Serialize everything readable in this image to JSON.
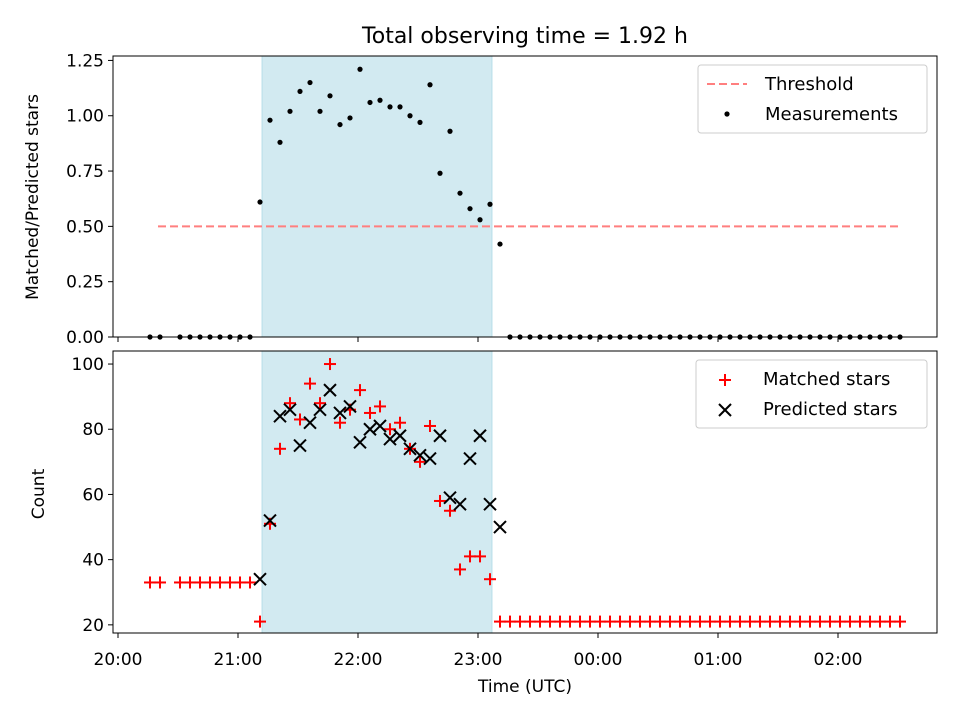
{
  "chart_data": [
    {
      "type": "scatter",
      "title": "Total observing time = 1.92 h",
      "ylabel": "Matched/Predicted stars",
      "ylim": [
        0,
        1.27
      ],
      "yticks": [
        "0.00",
        "0.25",
        "0.50",
        "0.75",
        "1.00",
        "1.25"
      ],
      "legend_position": "top-right",
      "shaded_interval": {
        "start": "21:12",
        "end": "23:07",
        "color": "#add8e6"
      },
      "threshold": {
        "name": "Threshold",
        "value": 0.5,
        "from": "20:20",
        "to": "02:32",
        "color": "#ff7f7f",
        "style": "dashed"
      },
      "series": [
        {
          "name": "Measurements",
          "color": "#000000",
          "marker": "dot",
          "x": [
            "20:16",
            "20:21",
            "20:31",
            "20:36",
            "20:41",
            "20:46",
            "20:51",
            "20:56",
            "21:01",
            "21:06",
            "21:11",
            "21:16",
            "21:21",
            "21:26",
            "21:31",
            "21:36",
            "21:41",
            "21:46",
            "21:51",
            "21:56",
            "22:01",
            "22:06",
            "22:11",
            "22:16",
            "22:21",
            "22:26",
            "22:31",
            "22:36",
            "22:41",
            "22:46",
            "22:51",
            "22:56",
            "23:01",
            "23:06",
            "23:11",
            "23:16",
            "23:21",
            "23:26",
            "23:31",
            "23:36",
            "23:41",
            "23:46",
            "23:51",
            "23:56",
            "00:01",
            "00:06",
            "00:11",
            "00:16",
            "00:21",
            "00:26",
            "00:31",
            "00:36",
            "00:41",
            "00:46",
            "00:51",
            "00:56",
            "01:01",
            "01:06",
            "01:11",
            "01:16",
            "01:21",
            "01:26",
            "01:31",
            "01:36",
            "01:41",
            "01:46",
            "01:51",
            "01:56",
            "02:01",
            "02:06",
            "02:11",
            "02:16",
            "02:21",
            "02:26",
            "02:31"
          ],
          "y": [
            0,
            0,
            0,
            0,
            0,
            0,
            0,
            0,
            0,
            0,
            0.61,
            0.98,
            0.88,
            1.02,
            1.11,
            1.15,
            1.02,
            1.09,
            0.96,
            0.99,
            1.21,
            1.06,
            1.07,
            1.04,
            1.04,
            1.0,
            0.97,
            1.14,
            0.74,
            0.93,
            0.65,
            0.58,
            0.53,
            0.6,
            0.42,
            0,
            0,
            0,
            0,
            0,
            0,
            0,
            0,
            0,
            0,
            0,
            0,
            0,
            0,
            0,
            0,
            0,
            0,
            0,
            0,
            0,
            0,
            0,
            0,
            0,
            0,
            0,
            0,
            0,
            0,
            0,
            0,
            0,
            0,
            0,
            0,
            0,
            0,
            0,
            0
          ]
        }
      ]
    },
    {
      "type": "scatter",
      "xlabel": "Time (UTC)",
      "ylabel": "Count",
      "ylim": [
        17.5,
        104
      ],
      "yticks": [
        "20",
        "40",
        "60",
        "80",
        "100"
      ],
      "xticks": [
        "20:00",
        "21:00",
        "22:00",
        "23:00",
        "00:00",
        "01:00",
        "02:00"
      ],
      "legend_position": "top-right",
      "shaded_interval": {
        "start": "21:12",
        "end": "23:07",
        "color": "#add8e6"
      },
      "series": [
        {
          "name": "Matched stars",
          "color": "#ff0000",
          "marker": "plus",
          "x": [
            "20:16",
            "20:21",
            "20:31",
            "20:36",
            "20:41",
            "20:46",
            "20:51",
            "20:56",
            "21:01",
            "21:06",
            "21:11",
            "21:16",
            "21:21",
            "21:26",
            "21:31",
            "21:36",
            "21:41",
            "21:46",
            "21:51",
            "21:56",
            "22:01",
            "22:06",
            "22:11",
            "22:16",
            "22:21",
            "22:26",
            "22:31",
            "22:36",
            "22:41",
            "22:46",
            "22:51",
            "22:56",
            "23:01",
            "23:06",
            "23:11",
            "23:16",
            "23:21",
            "23:26",
            "23:31",
            "23:36",
            "23:41",
            "23:46",
            "23:51",
            "23:56",
            "00:01",
            "00:06",
            "00:11",
            "00:16",
            "00:21",
            "00:26",
            "00:31",
            "00:36",
            "00:41",
            "00:46",
            "00:51",
            "00:56",
            "01:01",
            "01:06",
            "01:11",
            "01:16",
            "01:21",
            "01:26",
            "01:31",
            "01:36",
            "01:41",
            "01:46",
            "01:51",
            "01:56",
            "02:01",
            "02:06",
            "02:11",
            "02:16",
            "02:21",
            "02:26",
            "02:31"
          ],
          "y": [
            33,
            33,
            33,
            33,
            33,
            33,
            33,
            33,
            33,
            33,
            21,
            51,
            74,
            88,
            83,
            94,
            88,
            100,
            82,
            86,
            92,
            85,
            87,
            80,
            82,
            74,
            70,
            81,
            58,
            55,
            37,
            41,
            41,
            34,
            21,
            21,
            21,
            21,
            21,
            21,
            21,
            21,
            21,
            21,
            21,
            21,
            21,
            21,
            21,
            21,
            21,
            21,
            21,
            21,
            21,
            21,
            21,
            21,
            21,
            21,
            21,
            21,
            21,
            21,
            21,
            21,
            21,
            21,
            21,
            21,
            21,
            21,
            21,
            21,
            21
          ]
        },
        {
          "name": "Predicted stars",
          "color": "#000000",
          "marker": "x",
          "x": [
            "21:11",
            "21:16",
            "21:21",
            "21:26",
            "21:31",
            "21:36",
            "21:41",
            "21:46",
            "21:51",
            "21:56",
            "22:01",
            "22:06",
            "22:11",
            "22:16",
            "22:21",
            "22:26",
            "22:31",
            "22:36",
            "22:41",
            "22:46",
            "22:51",
            "22:56",
            "23:01",
            "23:06",
            "23:11"
          ],
          "y": [
            34,
            52,
            84,
            86,
            75,
            82,
            86,
            92,
            85,
            87,
            76,
            80,
            81,
            77,
            78,
            74,
            72,
            71,
            78,
            59,
            57,
            71,
            78,
            57,
            50
          ]
        }
      ]
    }
  ]
}
